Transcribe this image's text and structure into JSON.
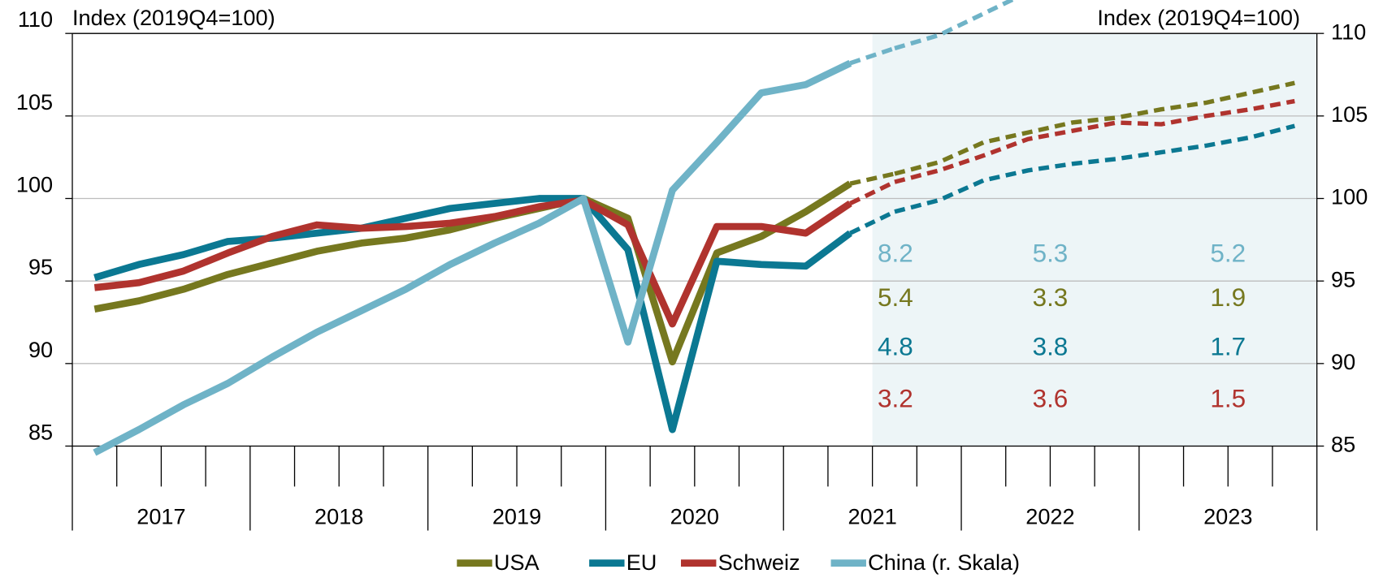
{
  "chart_data": {
    "type": "line",
    "y_label": "Index (2019Q4=100)",
    "y2_label": "Index (2019Q4=100)",
    "years": [
      2017,
      2018,
      2019,
      2020,
      2021,
      2022,
      2023
    ],
    "ylim": [
      85,
      110
    ],
    "yticks": [
      85,
      90,
      95,
      100,
      105,
      110
    ],
    "y2lim": [
      85,
      110
    ],
    "y2ticks": [
      85,
      90,
      95,
      100,
      105,
      110
    ],
    "grid": true,
    "legend": "bottom",
    "forecast_shading": "#edf5f7",
    "series": [
      {
        "name": "USA",
        "color": "#76781f",
        "values": [
          93.3,
          93.8,
          94.5,
          95.4,
          96.1,
          96.8,
          97.3,
          97.6,
          98.1,
          98.8,
          99.4,
          100.0,
          98.8,
          90.1,
          96.7,
          97.7,
          99.2,
          100.9,
          null,
          null,
          null,
          null,
          null,
          null,
          null,
          null,
          null,
          null
        ],
        "forecast": [
          null,
          null,
          null,
          null,
          null,
          null,
          null,
          null,
          null,
          null,
          null,
          null,
          null,
          null,
          null,
          null,
          null,
          null,
          101.5,
          102.2,
          103.4,
          104.0,
          104.6,
          104.9,
          105.4,
          105.8,
          106.4,
          107.0
        ],
        "growth": [
          5.4,
          3.3,
          1.9
        ]
      },
      {
        "name": "EU",
        "color": "#0b7892",
        "values": [
          95.2,
          96.0,
          96.6,
          97.4,
          97.6,
          97.9,
          98.2,
          98.8,
          99.4,
          99.7,
          100.0,
          100.0,
          96.9,
          86.0,
          96.2,
          96.0,
          95.9,
          97.9,
          null,
          null,
          null,
          null,
          null,
          null,
          null,
          null,
          null,
          null
        ],
        "forecast": [
          null,
          null,
          null,
          null,
          null,
          null,
          null,
          null,
          null,
          null,
          null,
          null,
          null,
          null,
          null,
          null,
          null,
          null,
          99.2,
          99.9,
          101.1,
          101.7,
          102.1,
          102.4,
          102.8,
          103.2,
          103.7,
          104.4
        ],
        "growth": [
          4.8,
          3.8,
          1.7
        ]
      },
      {
        "name": "Schweiz",
        "color": "#b0332e",
        "values": [
          94.6,
          94.9,
          95.6,
          96.7,
          97.7,
          98.4,
          98.2,
          98.3,
          98.5,
          98.9,
          99.5,
          99.9,
          98.4,
          92.4,
          98.3,
          98.3,
          97.9,
          99.7,
          null,
          null,
          null,
          null,
          null,
          null,
          null,
          null,
          null,
          null
        ],
        "forecast": [
          null,
          null,
          null,
          null,
          null,
          null,
          null,
          null,
          null,
          null,
          null,
          null,
          null,
          null,
          null,
          null,
          null,
          null,
          101.0,
          101.7,
          102.6,
          103.6,
          104.1,
          104.6,
          104.5,
          105.0,
          105.4,
          105.9
        ],
        "growth": [
          3.2,
          3.6,
          1.5
        ]
      },
      {
        "name": "China (r. Skala)",
        "color": "#6fb3c7",
        "axis": "y2",
        "values": [
          84.6,
          86.0,
          87.5,
          88.8,
          90.4,
          91.9,
          93.2,
          94.5,
          96.0,
          97.3,
          98.5,
          100.0,
          91.3,
          100.5,
          103.4,
          106.4,
          106.9,
          108.2,
          null,
          null,
          null,
          null,
          null,
          null,
          null,
          null,
          null,
          null
        ],
        "forecast": [
          null,
          null,
          null,
          null,
          null,
          null,
          null,
          null,
          null,
          null,
          null,
          null,
          null,
          null,
          null,
          null,
          null,
          null,
          109.1,
          109.9,
          111.2,
          112.5,
          null,
          null,
          null,
          null,
          null,
          null
        ],
        "growth": [
          8.2,
          5.3,
          5.2
        ]
      }
    ]
  }
}
